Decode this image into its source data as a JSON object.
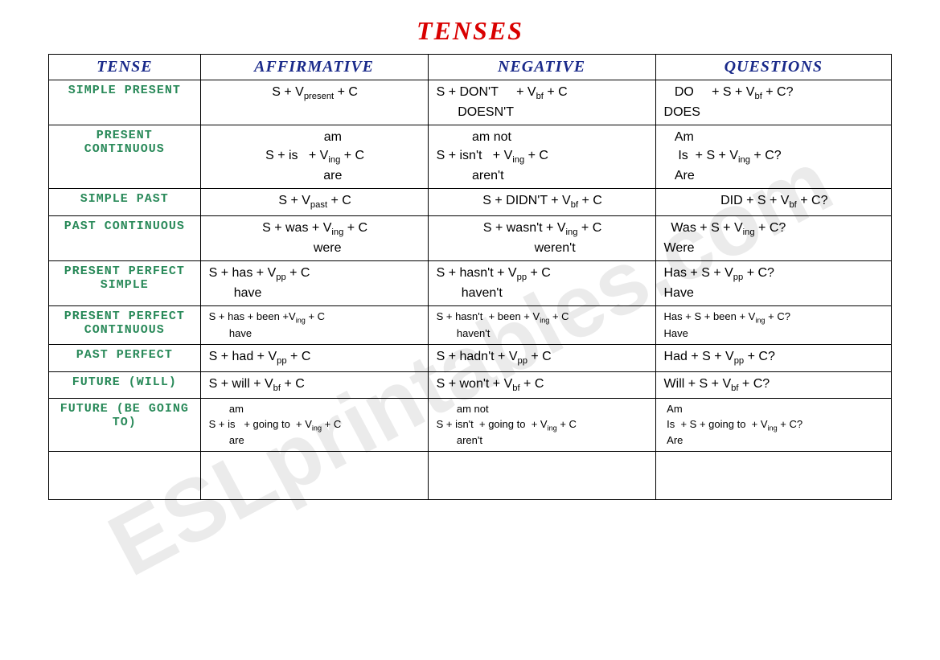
{
  "title": "TENSES",
  "watermark": "ESLprintables.com",
  "headers": [
    "TENSE",
    "AFFIRMATIVE",
    "NEGATIVE",
    "QUESTIONS"
  ],
  "rows": [
    {
      "tense": "SIMPLE PRESENT",
      "aff": "S + V<sub>present</sub> + C",
      "neg": "S + DON'T&nbsp;&nbsp;&nbsp;&nbsp;&nbsp;+ V<sub>bf</sub> + C<br>&nbsp;&nbsp;&nbsp;&nbsp;&nbsp;&nbsp;DOESN'T",
      "q": "&nbsp;&nbsp;&nbsp;DO&nbsp;&nbsp;&nbsp;&nbsp;&nbsp;+ S + V<sub>bf</sub> + C?<br>DOES",
      "affCenter": true
    },
    {
      "tense": "PRESENT CONTINUOUS",
      "aff": "&nbsp;&nbsp;&nbsp;&nbsp;&nbsp;&nbsp;&nbsp;&nbsp;&nbsp;&nbsp;am<br>S + is&nbsp;&nbsp;&nbsp;+ V<sub>ing</sub> + C<br>&nbsp;&nbsp;&nbsp;&nbsp;&nbsp;&nbsp;&nbsp;&nbsp;&nbsp;&nbsp;are",
      "neg": "&nbsp;&nbsp;&nbsp;&nbsp;&nbsp;&nbsp;&nbsp;&nbsp;&nbsp;&nbsp;am not<br>S + isn't&nbsp;&nbsp;&nbsp;+ V<sub>ing</sub> + C<br>&nbsp;&nbsp;&nbsp;&nbsp;&nbsp;&nbsp;&nbsp;&nbsp;&nbsp;&nbsp;aren't",
      "q": "&nbsp;&nbsp;&nbsp;Am<br>&nbsp;&nbsp;&nbsp;&nbsp;Is&nbsp;&nbsp;+ S + V<sub>ing</sub> + C?<br>&nbsp;&nbsp;&nbsp;Are",
      "affCenter": true
    },
    {
      "tense": "SIMPLE PAST",
      "aff": "S + V<sub>past</sub> + C",
      "neg": "S + DIDN'T + V<sub>bf</sub> + C",
      "q": "DID + S + V<sub>bf</sub> + C?",
      "affCenter": true,
      "negCenter": true,
      "qCenter": true
    },
    {
      "tense": "PAST CONTINUOUS",
      "aff": "S + was + V<sub>ing</sub> + C<br>&nbsp;&nbsp;&nbsp;&nbsp;&nbsp;&nbsp;&nbsp;were",
      "neg": "S + wasn't + V<sub>ing</sub> + C<br>&nbsp;&nbsp;&nbsp;&nbsp;&nbsp;&nbsp;&nbsp;weren't",
      "q": "&nbsp;&nbsp;Was + S + V<sub>ing</sub> + C?<br>Were",
      "affCenter": true,
      "negCenter": true
    },
    {
      "tense": "PRESENT PERFECT SIMPLE",
      "aff": "S + has + V<sub>pp</sub> + C<br>&nbsp;&nbsp;&nbsp;&nbsp;&nbsp;&nbsp;&nbsp;have",
      "neg": "S + hasn't + V<sub>pp</sub> + C<br>&nbsp;&nbsp;&nbsp;&nbsp;&nbsp;&nbsp;&nbsp;haven't",
      "q": "Has + S + V<sub>pp</sub> + C?<br>Have"
    },
    {
      "tense": "PRESENT PERFECT CONTINUOUS",
      "aff": "S + has + been +V<sub>ing</sub> + C<br>&nbsp;&nbsp;&nbsp;&nbsp;&nbsp;&nbsp;&nbsp;have",
      "neg": "S + hasn't&nbsp;&nbsp;+ been + V<sub>ing</sub> + C<br>&nbsp;&nbsp;&nbsp;&nbsp;&nbsp;&nbsp;&nbsp;haven't",
      "q": "Has + S + been + V<sub>ing</sub> + C?<br>Have",
      "small": true
    },
    {
      "tense": "PAST PERFECT",
      "aff": "S + had + V<sub>pp</sub> + C",
      "neg": "S + hadn't + V<sub>pp</sub> + C",
      "q": "Had + S + V<sub>pp</sub> + C?"
    },
    {
      "tense": "FUTURE (WILL)",
      "aff": "S + will + V<sub>bf</sub> + C",
      "neg": "S + won't + V<sub>bf</sub> + C",
      "q": "Will + S + V<sub>bf</sub> + C?"
    },
    {
      "tense": "FUTURE (BE GOING TO)",
      "aff": "&nbsp;&nbsp;&nbsp;&nbsp;&nbsp;&nbsp;&nbsp;am<br>S + is&nbsp;&nbsp;&nbsp;+ going to&nbsp;&nbsp;+ V<sub>ing</sub> + C<br>&nbsp;&nbsp;&nbsp;&nbsp;&nbsp;&nbsp;&nbsp;are",
      "neg": "&nbsp;&nbsp;&nbsp;&nbsp;&nbsp;&nbsp;&nbsp;am not<br>S + isn't&nbsp;&nbsp;+ going to&nbsp;&nbsp;+ V<sub>ing</sub> + C<br>&nbsp;&nbsp;&nbsp;&nbsp;&nbsp;&nbsp;&nbsp;aren't",
      "q": "&nbsp;Am<br>&nbsp;Is&nbsp;&nbsp;+ S + going to&nbsp;&nbsp;+ V<sub>ing</sub> + C?<br>&nbsp;Are",
      "small": true
    }
  ],
  "colors": {
    "title": "#d90000",
    "header": "#1a2a8a",
    "tense": "#2a8a5a",
    "border": "#000000",
    "text": "#000000",
    "background": "#ffffff"
  }
}
